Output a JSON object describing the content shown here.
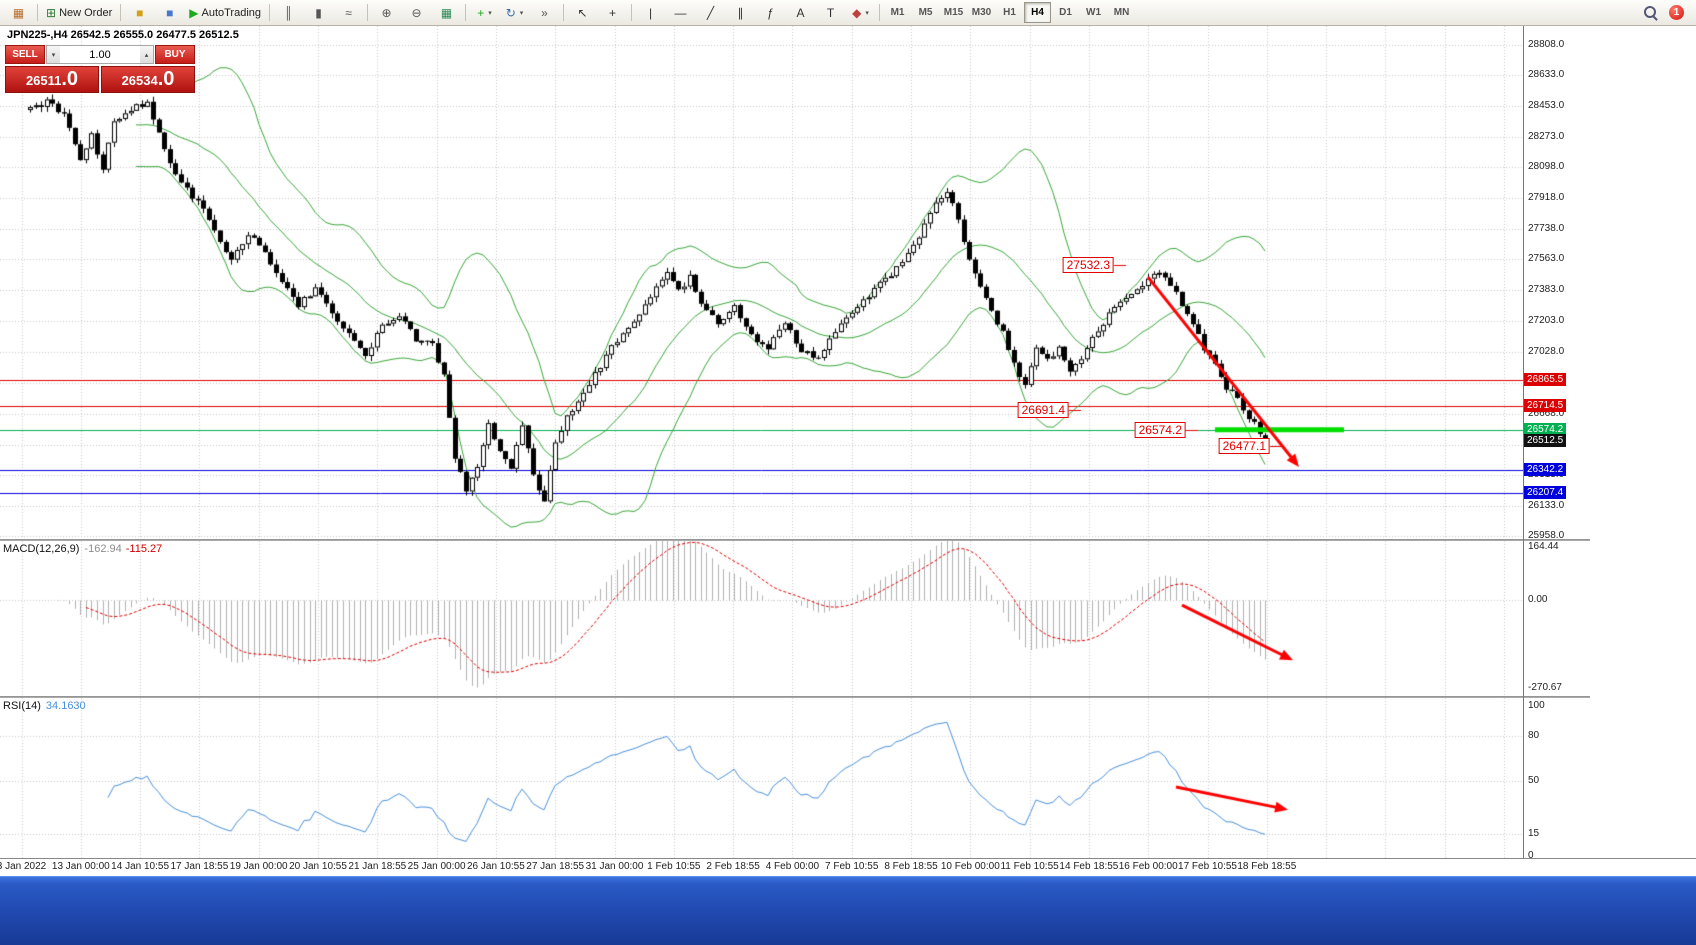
{
  "toolbar": {
    "new_order_label": "New Order",
    "autotrading_label": "AutoTrading",
    "notification_count": "1",
    "items": [
      {
        "name": "chart-window-icon",
        "glyph": "▦",
        "color": "#b8702e"
      },
      {
        "sep": true
      },
      {
        "name": "new-order-button",
        "glyph": "⊞",
        "color": "#2e7d32",
        "label": "New Order"
      },
      {
        "sep": true
      },
      {
        "name": "expert-advisors-icon",
        "glyph": "■",
        "color": "#d4a017"
      },
      {
        "name": "metaeditor-icon",
        "glyph": "■",
        "color": "#4a78d0"
      },
      {
        "name": "autotrading-button",
        "glyph": "▶",
        "color": "#1faa1f",
        "label": "AutoTrading"
      },
      {
        "sep": true
      },
      {
        "name": "bar-chart-icon",
        "glyph": "║",
        "color": "#555555"
      },
      {
        "name": "candlestick-chart-icon",
        "glyph": "▮",
        "color": "#555555"
      },
      {
        "name": "line-chart-icon",
        "glyph": "≈",
        "color": "#555555"
      },
      {
        "sep": true
      },
      {
        "name": "zoom-in-icon",
        "glyph": "⊕",
        "color": "#555555"
      },
      {
        "name": "zoom-out-icon",
        "glyph": "⊖",
        "color": "#555555"
      },
      {
        "name": "tile-windows-icon",
        "glyph": "▦",
        "color": "#2e8b57"
      },
      {
        "sep": true
      },
      {
        "name": "new-chart-button",
        "glyph": "+",
        "color": "#1faa1f",
        "caret": true
      },
      {
        "name": "autoscroll-icon",
        "glyph": "↻",
        "color": "#3a6ea5",
        "caret": true
      },
      {
        "name": "chart-shift-icon",
        "glyph": "»",
        "color": "#555555"
      },
      {
        "sep": true
      },
      {
        "name": "cursor-icon",
        "glyph": "↖",
        "color": "#333333"
      },
      {
        "name": "crosshair-icon",
        "glyph": "+",
        "color": "#333333"
      },
      {
        "sep": true
      },
      {
        "name": "vertical-line-icon",
        "glyph": "|",
        "color": "#333333"
      },
      {
        "name": "horizontal-line-icon",
        "glyph": "—",
        "color": "#333333"
      },
      {
        "name": "trendline-icon",
        "glyph": "╱",
        "color": "#333333"
      },
      {
        "name": "channel-icon",
        "glyph": "∥",
        "color": "#333333"
      },
      {
        "name": "fibonacci-icon",
        "glyph": "ƒ",
        "color": "#333333"
      },
      {
        "name": "text-icon",
        "glyph": "A",
        "color": "#333333"
      },
      {
        "name": "text-label-icon",
        "glyph": "T",
        "color": "#333333"
      },
      {
        "name": "shapes-icon",
        "glyph": "◆",
        "color": "#c04040",
        "caret": true
      },
      {
        "sep": true
      }
    ],
    "timeframes": [
      "M1",
      "M5",
      "M15",
      "M30",
      "H1",
      "H4",
      "D1",
      "W1",
      "MN"
    ],
    "active_timeframe": "H4"
  },
  "chart": {
    "title": "JPN225-,H4 26542.5 26555.0 26477.5 26512.5",
    "symbol_period": "JPN225-,H4"
  },
  "one_click": {
    "sell_label": "SELL",
    "buy_label": "BUY",
    "volume": "1.00",
    "spin_down_glyph": "▾",
    "spin_up_glyph": "▴",
    "sell_price": "26511.0",
    "buy_price": "26534.0",
    "sell_small": "26511",
    "sell_big": ".0",
    "buy_small": "26534",
    "buy_big": ".0"
  },
  "indicators": {
    "macd_name": "MACD(12,26,9)",
    "macd_value1": "-162.94",
    "macd_value2": "-115.27",
    "rsi_name": "RSI(14)",
    "rsi_value": "34.1630"
  },
  "chart_data": {
    "type": "candlestick",
    "symbol": "JPN225-",
    "timeframe": "H4",
    "last_ohlc": {
      "open": 26542.5,
      "high": 26555.0,
      "low": 26477.5,
      "close": 26512.5
    },
    "bars_total": 222,
    "y_range": [
      25940,
      28918
    ],
    "y_grid": [
      25958,
      26133,
      26313,
      26488,
      26668,
      26848,
      27028,
      27203,
      27383,
      27563,
      27738,
      27918,
      28098,
      28273,
      28453,
      28633,
      28808
    ],
    "y_ticks": [
      "28808.0",
      "28633.0",
      "28453.0",
      "28273.0",
      "28098.0",
      "27918.0",
      "27738.0",
      "27563.0",
      "27383.0",
      "27203.0",
      "27028.0",
      "26668.0",
      "26313.0",
      "26133.0",
      "25958.0"
    ],
    "x_labels": [
      "3 Jan 2022",
      "13 Jan 00:00",
      "14 Jan 10:55",
      "17 Jan 18:55",
      "19 Jan 00:00",
      "20 Jan 10:55",
      "21 Jan 18:55",
      "25 Jan 00:00",
      "26 Jan 10:55",
      "27 Jan 18:55",
      "31 Jan 00:00",
      "1 Feb 10:55",
      "2 Feb 18:55",
      "4 Feb 00:00",
      "7 Feb 10:55",
      "8 Feb 18:55",
      "10 Feb 00:00",
      "11 Feb 10:55",
      "14 Feb 18:55",
      "16 Feb 00:00",
      "17 Feb 10:55",
      "18 Feb 18:55"
    ],
    "price_path": [
      [
        0,
        28430
      ],
      [
        3,
        28480
      ],
      [
        6,
        28400
      ],
      [
        9,
        28150
      ],
      [
        11,
        28280
      ],
      [
        13,
        28100
      ],
      [
        15,
        28350
      ],
      [
        18,
        28440
      ],
      [
        21,
        28470
      ],
      [
        24,
        28200
      ],
      [
        27,
        28000
      ],
      [
        30,
        27900
      ],
      [
        33,
        27740
      ],
      [
        36,
        27550
      ],
      [
        39,
        27720
      ],
      [
        42,
        27600
      ],
      [
        45,
        27420
      ],
      [
        48,
        27300
      ],
      [
        51,
        27400
      ],
      [
        54,
        27260
      ],
      [
        57,
        27120
      ],
      [
        60,
        27000
      ],
      [
        63,
        27180
      ],
      [
        66,
        27250
      ],
      [
        69,
        27100
      ],
      [
        72,
        27060
      ],
      [
        74,
        26900
      ],
      [
        76,
        26420
      ],
      [
        78,
        26220
      ],
      [
        80,
        26360
      ],
      [
        82,
        26600
      ],
      [
        84,
        26450
      ],
      [
        86,
        26340
      ],
      [
        88,
        26600
      ],
      [
        90,
        26300
      ],
      [
        92,
        26170
      ],
      [
        94,
        26500
      ],
      [
        96,
        26650
      ],
      [
        98,
        26720
      ],
      [
        100,
        26850
      ],
      [
        102,
        26950
      ],
      [
        105,
        27100
      ],
      [
        108,
        27200
      ],
      [
        111,
        27350
      ],
      [
        114,
        27480
      ],
      [
        116,
        27380
      ],
      [
        118,
        27460
      ],
      [
        120,
        27310
      ],
      [
        123,
        27200
      ],
      [
        126,
        27280
      ],
      [
        129,
        27120
      ],
      [
        132,
        27050
      ],
      [
        135,
        27200
      ],
      [
        138,
        27030
      ],
      [
        141,
        26980
      ],
      [
        144,
        27150
      ],
      [
        147,
        27250
      ],
      [
        150,
        27350
      ],
      [
        153,
        27450
      ],
      [
        156,
        27550
      ],
      [
        159,
        27700
      ],
      [
        162,
        27880
      ],
      [
        164,
        27950
      ],
      [
        166,
        27800
      ],
      [
        168,
        27550
      ],
      [
        170,
        27400
      ],
      [
        172,
        27250
      ],
      [
        174,
        27150
      ],
      [
        176,
        26950
      ],
      [
        178,
        26820
      ],
      [
        180,
        27050
      ],
      [
        182,
        26980
      ],
      [
        184,
        27050
      ],
      [
        186,
        26900
      ],
      [
        188,
        27000
      ],
      [
        190,
        27100
      ],
      [
        193,
        27250
      ],
      [
        196,
        27330
      ],
      [
        199,
        27420
      ],
      [
        202,
        27500
      ],
      [
        204,
        27420
      ],
      [
        206,
        27300
      ],
      [
        208,
        27180
      ],
      [
        210,
        27050
      ],
      [
        212,
        26950
      ],
      [
        214,
        26820
      ],
      [
        216,
        26750
      ],
      [
        218,
        26650
      ],
      [
        220,
        26560
      ],
      [
        221,
        26512.5
      ]
    ],
    "levels": [
      {
        "price": 26865.5,
        "label": "26865.5",
        "color": "#dd0000"
      },
      {
        "price": 26714.5,
        "label": "26714.5",
        "color": "#dd0000"
      },
      {
        "price": 26574.2,
        "label": "26574.2",
        "color": "#00b050"
      },
      {
        "price": 26342.2,
        "label": "26342.2",
        "color": "#0000dd"
      },
      {
        "price": 26207.4,
        "label": "26207.4",
        "color": "#0000dd"
      }
    ],
    "bid": {
      "price": 26512.5,
      "label": "26512.5",
      "color": "#111111"
    },
    "callouts": [
      {
        "text": "27532.3",
        "bar": 196,
        "price": 27532.3
      },
      {
        "text": "26691.4",
        "bar": 188,
        "price": 26691.4
      },
      {
        "text": "26574.2",
        "bar": 209,
        "price": 26574.2
      },
      {
        "text": "26477.1",
        "bar": 224,
        "price": 26477.1
      }
    ],
    "thick_segment": {
      "price": 26574.2,
      "bar_start": 212,
      "bar_end": 235,
      "color": "#00dd00"
    },
    "arrows": [
      {
        "panel": "main",
        "from": [
          200,
          27460
        ],
        "to": [
          227,
          26358
        ]
      },
      {
        "panel": "macd",
        "from": [
          206,
          -15
        ],
        "to": [
          226,
          -185
        ]
      },
      {
        "panel": "rsi",
        "from": [
          205,
          46
        ],
        "to": [
          225,
          31
        ]
      }
    ],
    "bands": {
      "period": 20,
      "deviation": 2
    },
    "macd": {
      "ticks": [
        "164.44",
        "0.00",
        "-270.67"
      ],
      "range": [
        -295,
        183
      ]
    },
    "rsi": {
      "ticks": [
        "100",
        "80",
        "50",
        "15",
        "0"
      ],
      "levels": [
        80,
        50,
        15
      ],
      "range": [
        -1,
        105
      ]
    },
    "style": {
      "grid": "#c9c9c9",
      "candle_up_fill": "#ffffff",
      "candle_down_fill": "#000000",
      "candle_border": "#000000",
      "bands": "#3aa63a",
      "macd_hist": "#b0b0b0",
      "macd_signal": "#dd0000",
      "rsi_line": "#4a90d9",
      "arrow": "#ff0000"
    }
  }
}
